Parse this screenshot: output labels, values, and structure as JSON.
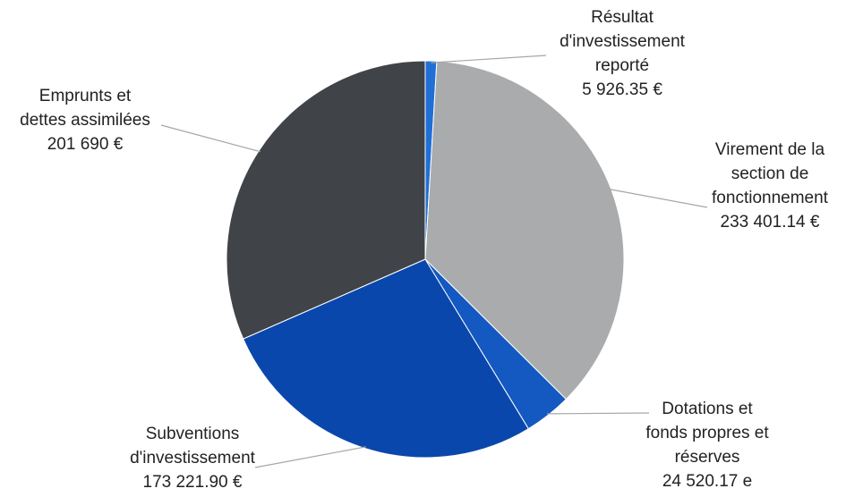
{
  "chart_data": {
    "type": "pie",
    "title": "",
    "slices": [
      {
        "label": [
          "Résultat",
          "d'investissement",
          "reporté"
        ],
        "value_text": "5 926.35 €",
        "value": 5926.35,
        "color": "#1f6fd6"
      },
      {
        "label": [
          "Virement de la",
          "section de",
          "fonctionnement"
        ],
        "value_text": "233 401.14 €",
        "value": 233401.14,
        "color": "#a9abad"
      },
      {
        "label": [
          "Dotations et",
          "fonds propres et",
          "réserves"
        ],
        "value_text": "24 520.17 e",
        "value": 24520.17,
        "color": "#1458c2"
      },
      {
        "label": [
          "Subventions",
          "d'investissement"
        ],
        "value_text": "173 221.90 €",
        "value": 173221.9,
        "color": "#0a47ad"
      },
      {
        "label": [
          "Emprunts et",
          "dettes assimilées"
        ],
        "value_text": "201 690 €",
        "value": 201690,
        "color": "#404448"
      }
    ]
  }
}
